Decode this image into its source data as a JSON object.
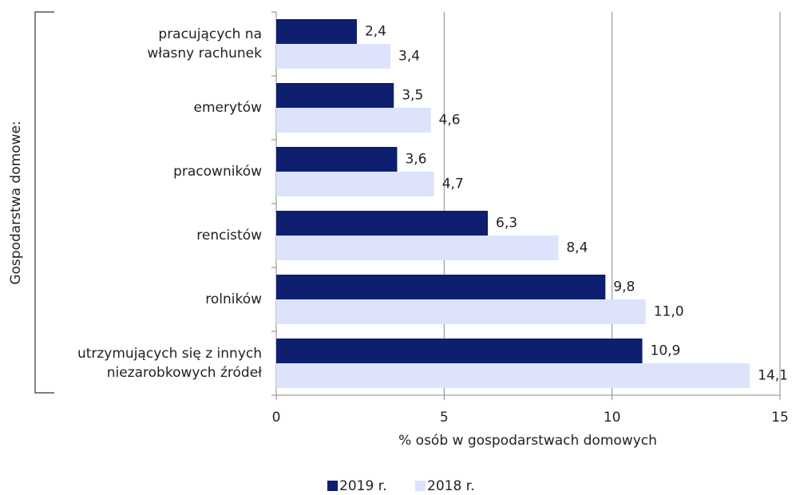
{
  "chart_data": {
    "type": "bar",
    "orientation": "horizontal",
    "categories": [
      "pracujących na\nwłasny rachunek",
      "emerytów",
      "pracowników",
      "rencistów",
      "rolników",
      "utrzymujących się z innych\nniezarobkowych źródeł"
    ],
    "series": [
      {
        "name": "2019 r.",
        "color": "#0d1f6e",
        "values": [
          2.4,
          3.5,
          3.6,
          6.3,
          9.8,
          10.9
        ],
        "value_labels": [
          "2,4",
          "3,5",
          "3,6",
          "6,3",
          "9,8",
          "10,9"
        ]
      },
      {
        "name": "2018 r.",
        "color": "#dde3fa",
        "values": [
          3.4,
          4.6,
          4.7,
          8.4,
          11.0,
          14.1
        ],
        "value_labels": [
          "3,4",
          "4,6",
          "4,7",
          "8,4",
          "11,0",
          "14,1"
        ]
      }
    ],
    "xlim": [
      0,
      15
    ],
    "xticks": [
      0,
      5,
      10,
      15
    ],
    "grid": true,
    "xlabel": "% osób w gospodarstwach domowych",
    "ylabel": "Gospodarstwa domowe:",
    "legend": "bottom"
  }
}
